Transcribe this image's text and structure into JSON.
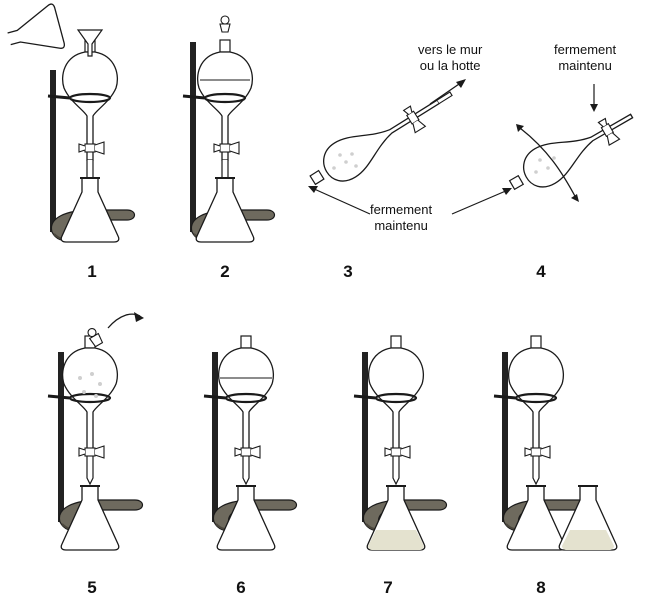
{
  "steps": [
    {
      "number": "1",
      "label": "1"
    },
    {
      "number": "2",
      "label": "2"
    },
    {
      "number": "3",
      "label": "3"
    },
    {
      "number": "4",
      "label": "4"
    },
    {
      "number": "5",
      "label": "5"
    },
    {
      "number": "6",
      "label": "6"
    },
    {
      "number": "7",
      "label": "7"
    },
    {
      "number": "8",
      "label": "8"
    }
  ],
  "annotations": {
    "vent_line1": "vers le mur",
    "vent_line2": "ou la hotte",
    "closure_top_line1": "fermement",
    "closure_top_line2": "maintenu",
    "closure_bottom_line1": "fermement",
    "closure_bottom_line2": "maintenu"
  },
  "colors": {
    "line": "#1a1a1a",
    "glass": "#ffffff",
    "stand_base": "#6e6a5e",
    "stand_shadow": "#4a463c",
    "rod": "#222222",
    "liquid_bottom": "#e4e2cf",
    "bubbles": "#cfcfcf"
  }
}
